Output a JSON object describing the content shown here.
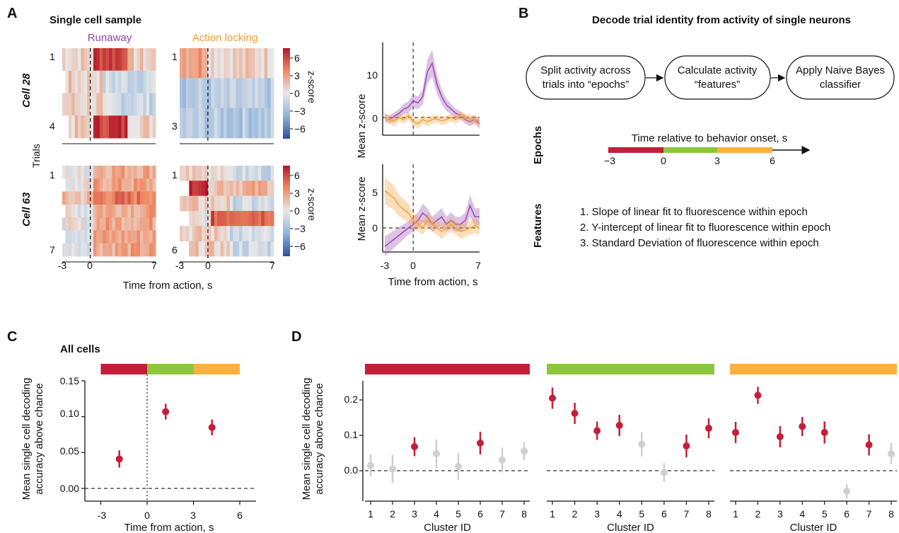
{
  "panels": {
    "a": {
      "letter": "A",
      "title": "Single cell sample",
      "cond_runaway": "Runaway",
      "cond_action": "Action locking",
      "trials_label": "Trials",
      "cell28": "Cell 28",
      "cell63": "Cell 63",
      "colorbar_label": "z-score",
      "colorbar_ticks": [
        "6",
        "3",
        "0",
        "−3",
        "−6"
      ],
      "row_labels": {
        "c28_run": [
          "1",
          "4"
        ],
        "c28_act": [
          "1",
          "3"
        ],
        "c63_run": [
          "1",
          "7"
        ],
        "c63_act": [
          "1",
          "6"
        ]
      },
      "heat_xticks": [
        "-3",
        "0",
        "7"
      ],
      "heat_xlabel": "Time from action, s",
      "mean_ylabel": "Mean z-score",
      "mean_xlabel": "Time from action, s",
      "mean_xticks": [
        "-3",
        "0",
        "7"
      ],
      "mean_top_yticks": [
        "10",
        "0"
      ],
      "mean_bottom_yticks": [
        "5",
        "0"
      ]
    },
    "b": {
      "letter": "B",
      "title": "Decode trial identity from activity of single neurons",
      "box1": [
        "Split activity across",
        "trials into “epochs”"
      ],
      "box2": [
        "Calculate activity",
        "“features”"
      ],
      "box3": [
        "Apply Naive Bayes",
        "classifier"
      ],
      "epochs_label": "Epochs",
      "epochs_axis_title": "Time relative to behavior onset, s",
      "epoch_ticks": [
        "−3",
        "0",
        "3",
        "6"
      ],
      "features_label": "Features",
      "features": [
        "1. Slope of linear fit to fluorescence within epoch",
        "2. Y-intercept of linear fit to fluorescence within epoch",
        "3. Standard Deviation of fluorescence within epoch"
      ]
    },
    "c": {
      "letter": "C",
      "title": "All cells",
      "ylabel": [
        "Mean single cell decoding",
        "accuracy above chance"
      ],
      "xlabel": "Time from action, s",
      "yticks": [
        "0.15",
        "0.10",
        "0.05",
        "0.00"
      ],
      "xticks": [
        "-3",
        "0",
        "3",
        "6"
      ]
    },
    "d": {
      "letter": "D",
      "ylabel": [
        "Mean single cell decoding",
        "accuracy above chance"
      ],
      "xlabel": "Cluster ID",
      "yticks": [
        "0.2",
        "0.1",
        "0.0"
      ],
      "xticks": [
        "1",
        "2",
        "3",
        "4",
        "5",
        "6",
        "7",
        "8"
      ]
    }
  },
  "colors": {
    "red": "#c41e3a",
    "green": "#8cc63f",
    "orange": "#fbb040",
    "purple": "#8e44ad",
    "gray": "#cfcfcf"
  },
  "chart_data": [
    {
      "type": "scatter",
      "title": "All cells",
      "xlabel": "Time from action, s",
      "ylabel": "Mean single cell decoding accuracy above chance",
      "xlim": [
        -3.6,
        7
      ],
      "ylim": [
        -0.02,
        0.15
      ],
      "x": [
        -1.8,
        1.2,
        4.2
      ],
      "y": [
        0.041,
        0.107,
        0.085
      ],
      "err": [
        0.012,
        0.011,
        0.011
      ],
      "epochs": [
        {
          "from": -3,
          "to": 0,
          "color": "red"
        },
        {
          "from": 0,
          "to": 3,
          "color": "green"
        },
        {
          "from": 3,
          "to": 6,
          "color": "orange"
        }
      ]
    },
    {
      "type": "scatter",
      "xlabel": "Cluster ID",
      "ylabel": "Mean single cell decoding accuracy above chance",
      "ylim": [
        -0.08,
        0.25
      ],
      "epoch_color": "red",
      "x": [
        1,
        2,
        3,
        4,
        5,
        6,
        7,
        8
      ],
      "y": [
        0.015,
        0.005,
        0.068,
        0.048,
        0.012,
        0.078,
        0.03,
        0.055
      ],
      "err": [
        0.032,
        0.04,
        0.027,
        0.04,
        0.038,
        0.032,
        0.035,
        0.025
      ],
      "significant": [
        false,
        false,
        true,
        false,
        false,
        true,
        false,
        false
      ]
    },
    {
      "type": "scatter",
      "xlabel": "Cluster ID",
      "ylabel": "Mean single cell decoding accuracy above chance",
      "ylim": [
        -0.08,
        0.25
      ],
      "epoch_color": "green",
      "x": [
        1,
        2,
        3,
        4,
        5,
        6,
        7,
        8
      ],
      "y": [
        0.205,
        0.162,
        0.113,
        0.128,
        0.075,
        -0.005,
        0.07,
        0.12
      ],
      "err": [
        0.03,
        0.03,
        0.026,
        0.03,
        0.034,
        0.026,
        0.032,
        0.028
      ],
      "significant": [
        true,
        true,
        true,
        true,
        false,
        false,
        true,
        true
      ]
    },
    {
      "type": "scatter",
      "xlabel": "Cluster ID",
      "ylabel": "Mean single cell decoding accuracy above chance",
      "ylim": [
        -0.08,
        0.25
      ],
      "epoch_color": "orange",
      "x": [
        1,
        2,
        3,
        4,
        5,
        6,
        7,
        8
      ],
      "y": [
        0.108,
        0.213,
        0.096,
        0.125,
        0.108,
        -0.058,
        0.073,
        0.048
      ],
      "err": [
        0.03,
        0.024,
        0.03,
        0.027,
        0.031,
        0.02,
        0.03,
        0.03
      ],
      "significant": [
        true,
        true,
        true,
        true,
        true,
        false,
        true,
        false
      ]
    },
    {
      "type": "line",
      "ylabel": "Mean z-score",
      "xlim": [
        -3,
        7
      ],
      "ylim": [
        -2.5,
        16
      ],
      "series": [
        {
          "color": "purple",
          "x": [
            -3,
            -2.5,
            -2,
            -1.5,
            -1,
            -0.5,
            0,
            0.5,
            1,
            1.5,
            2,
            2.5,
            3,
            3.5,
            4,
            4.5,
            5,
            5.5,
            6,
            6.5,
            7
          ],
          "y": [
            0,
            -0.5,
            0.3,
            1,
            2,
            2.5,
            4,
            3.5,
            5,
            11,
            13,
            8,
            5,
            3,
            2,
            1,
            0.5,
            -0.5,
            -1,
            -0.5,
            -1.5
          ]
        },
        {
          "color": "orange",
          "x": [
            -3,
            -2.5,
            -2,
            -1.5,
            -1,
            -0.5,
            0,
            0.5,
            1,
            1.5,
            2,
            2.5,
            3,
            3.5,
            4,
            4.5,
            5,
            5.5,
            6,
            6.5,
            7
          ],
          "y": [
            0,
            -0.5,
            -1,
            0,
            -0.5,
            0.5,
            -1,
            -1.5,
            -0.5,
            -1,
            -0.5,
            -0.3,
            -0.8,
            -0.5,
            0,
            -0.5,
            0.5,
            0,
            -0.3,
            -0.5,
            -0.8
          ]
        }
      ]
    },
    {
      "type": "line",
      "ylabel": "Mean z-score",
      "xlabel": "Time from action, s",
      "xlim": [
        -3,
        7
      ],
      "ylim": [
        -3,
        9
      ],
      "series": [
        {
          "color": "purple",
          "x": [
            -3,
            -2.5,
            -2,
            -1.5,
            -1,
            -0.5,
            0,
            0.5,
            1,
            1.5,
            2,
            2.5,
            3,
            3.5,
            4,
            4.5,
            5,
            5.5,
            6,
            6.5,
            7
          ],
          "y": [
            -2.5,
            -2,
            -1.5,
            -1,
            -0.5,
            0,
            0.5,
            1,
            2,
            1.5,
            0.5,
            1,
            1.5,
            0.5,
            1,
            0.5,
            0.5,
            1,
            3,
            1.5,
            1.5
          ]
        },
        {
          "color": "orange",
          "x": [
            -3,
            -2.5,
            -2,
            -1.5,
            -1,
            -0.5,
            0,
            0.5,
            1,
            1.5,
            2,
            2.5,
            3,
            3.5,
            4,
            4.5,
            5,
            5.5,
            6,
            6.5,
            7
          ],
          "y": [
            5,
            4.5,
            4,
            3,
            2.5,
            2,
            1,
            0.5,
            0,
            1,
            0.5,
            0,
            -0.5,
            0,
            0.5,
            0,
            -0.5,
            -0.3,
            0,
            0.3,
            0
          ]
        }
      ]
    },
    {
      "type": "heatmap",
      "zlim": [
        -7,
        7
      ],
      "xticks": [
        -3,
        0,
        7
      ],
      "note": "four single-trial z-score heatmaps (Cell 28 / Cell 63 × Runaway / Action locking)"
    }
  ]
}
